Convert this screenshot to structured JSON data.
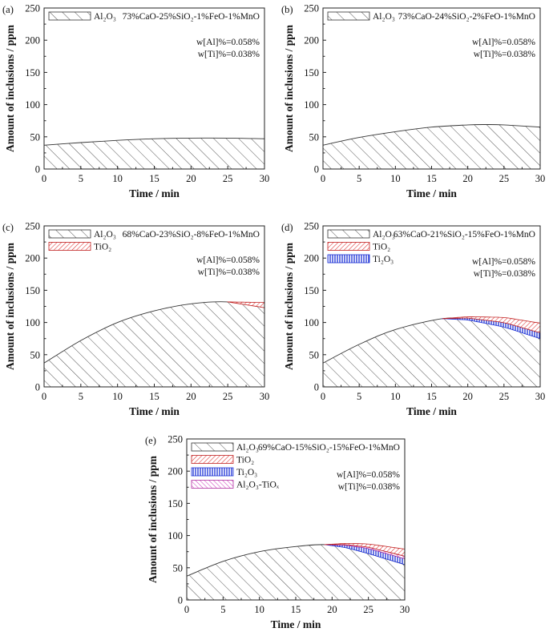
{
  "colors": {
    "al2o3": "#555555",
    "tio2": "#e03030",
    "ti2o3": "#1a2fd6",
    "al2o3_tiox": "#d040c0"
  },
  "chart_data": [
    {
      "panel": "(a)",
      "type": "area",
      "xlabel": "Time / min",
      "ylabel": "Amount of inclusions / ppm",
      "xlim": [
        0,
        30
      ],
      "ylim": [
        0,
        250
      ],
      "xticks": [
        "0",
        "5",
        "10",
        "15",
        "20",
        "25",
        "30"
      ],
      "yticks": [
        "0",
        "50",
        "100",
        "150",
        "200",
        "250"
      ],
      "slag": "73%CaO-25%SiO₂-1%FeO-1%MnO",
      "conditions": [
        "w[Al]%=0.058%",
        "w[Ti]%=0.038%"
      ],
      "legend": [
        "Al₂O₃"
      ],
      "series": [
        {
          "name": "Al₂O₃",
          "x": [
            0,
            5,
            10,
            15,
            20,
            25,
            30
          ],
          "values": [
            37,
            41,
            44.5,
            47,
            48,
            48,
            47
          ]
        }
      ]
    },
    {
      "panel": "(b)",
      "type": "area",
      "xlabel": "Time / min",
      "ylabel": "Amount of inclusions / ppm",
      "xlim": [
        0,
        30
      ],
      "ylim": [
        0,
        250
      ],
      "xticks": [
        "0",
        "5",
        "10",
        "15",
        "20",
        "25",
        "30"
      ],
      "yticks": [
        "0",
        "50",
        "100",
        "150",
        "200",
        "250"
      ],
      "slag": "73%CaO-24%SiO₂-2%FeO-1%MnO",
      "conditions": [
        "w[Al]%=0.058%",
        "w[Ti]%=0.038%"
      ],
      "legend": [
        "Al₂O₃"
      ],
      "series": [
        {
          "name": "Al₂O₃",
          "x": [
            0,
            5,
            10,
            15,
            20,
            22.5,
            25,
            30
          ],
          "values": [
            37,
            49,
            58,
            65,
            68.5,
            69,
            68.5,
            65
          ]
        }
      ]
    },
    {
      "panel": "(c)",
      "type": "area",
      "xlabel": "Time / min",
      "ylabel": "Amount of inclusions / ppm",
      "xlim": [
        0,
        30
      ],
      "ylim": [
        0,
        250
      ],
      "xticks": [
        "0",
        "5",
        "10",
        "15",
        "20",
        "25",
        "30"
      ],
      "yticks": [
        "0",
        "50",
        "100",
        "150",
        "200",
        "250"
      ],
      "slag": "68%CaO-23%SiO₂-8%FeO-1%MnO",
      "conditions": [
        "w[Al]%=0.058%",
        "w[Ti]%=0.038%"
      ],
      "legend": [
        "Al₂O₃",
        "TiO₂"
      ],
      "series": [
        {
          "name": "Al₂O₃",
          "x": [
            0,
            5,
            10,
            15,
            20,
            25,
            30
          ],
          "values": [
            37,
            72,
            100,
            118,
            129,
            132,
            123
          ]
        },
        {
          "name": "TiO₂",
          "x": [
            25,
            27.5,
            30
          ],
          "values": [
            0,
            4,
            8
          ]
        }
      ]
    },
    {
      "panel": "(d)",
      "type": "area",
      "xlabel": "Time / min",
      "ylabel": "Amount of inclusions / ppm",
      "xlim": [
        0,
        30
      ],
      "ylim": [
        0,
        250
      ],
      "xticks": [
        "0",
        "5",
        "10",
        "15",
        "20",
        "25",
        "30"
      ],
      "yticks": [
        "0",
        "50",
        "100",
        "150",
        "200",
        "250"
      ],
      "slag": "63%CaO-21%SiO₂-15%FeO-1%MnO",
      "conditions": [
        "w[Al]%=0.058%",
        "w[Ti]%=0.038%"
      ],
      "legend": [
        "Al₂O₃",
        "TiO₂",
        "Ti₂O₃"
      ],
      "series": [
        {
          "name": "Al₂O₃",
          "x": [
            0,
            5,
            10,
            16.5,
            20,
            25,
            30
          ],
          "values": [
            37,
            66,
            89,
            106,
            104,
            93,
            75
          ]
        },
        {
          "name": "Ti₂O₃",
          "x": [
            16.5,
            20,
            25,
            30
          ],
          "values": [
            0,
            3,
            7,
            9
          ]
        },
        {
          "name": "TiO₂",
          "x": [
            16.5,
            20,
            25,
            30
          ],
          "values": [
            0,
            2,
            8,
            15
          ]
        }
      ]
    },
    {
      "panel": "(e)",
      "type": "area",
      "xlabel": "Time / min",
      "ylabel": "Amount of inclusions / ppm",
      "xlim": [
        0,
        30
      ],
      "ylim": [
        0,
        250
      ],
      "xticks": [
        "0",
        "5",
        "10",
        "15",
        "20",
        "25",
        "30"
      ],
      "yticks": [
        "0",
        "50",
        "100",
        "150",
        "200",
        "250"
      ],
      "slag": "69%CaO-15%SiO₂-15%FeO-1%MnO",
      "conditions": [
        "w[Al]%=0.058%",
        "w[Ti]%=0.038%"
      ],
      "legend": [
        "Al₂O₃",
        "TiO₂",
        "Ti₂O₃",
        "Al₂O₃-TiOₓ"
      ],
      "series": [
        {
          "name": "Al₂O₃",
          "x": [
            0,
            5,
            10,
            15,
            19,
            22,
            25,
            30
          ],
          "values": [
            37,
            60,
            75,
            83,
            86,
            81,
            72,
            55
          ]
        },
        {
          "name": "Ti₂O₃",
          "x": [
            19,
            22,
            25,
            30
          ],
          "values": [
            0,
            4,
            8,
            9
          ]
        },
        {
          "name": "Al₂O₃-TiOₓ",
          "x": [
            19,
            22,
            25,
            30
          ],
          "values": [
            0,
            1,
            2,
            4
          ]
        },
        {
          "name": "TiO₂",
          "x": [
            19,
            22,
            25,
            30
          ],
          "values": [
            0,
            2,
            5,
            11
          ]
        }
      ]
    }
  ]
}
